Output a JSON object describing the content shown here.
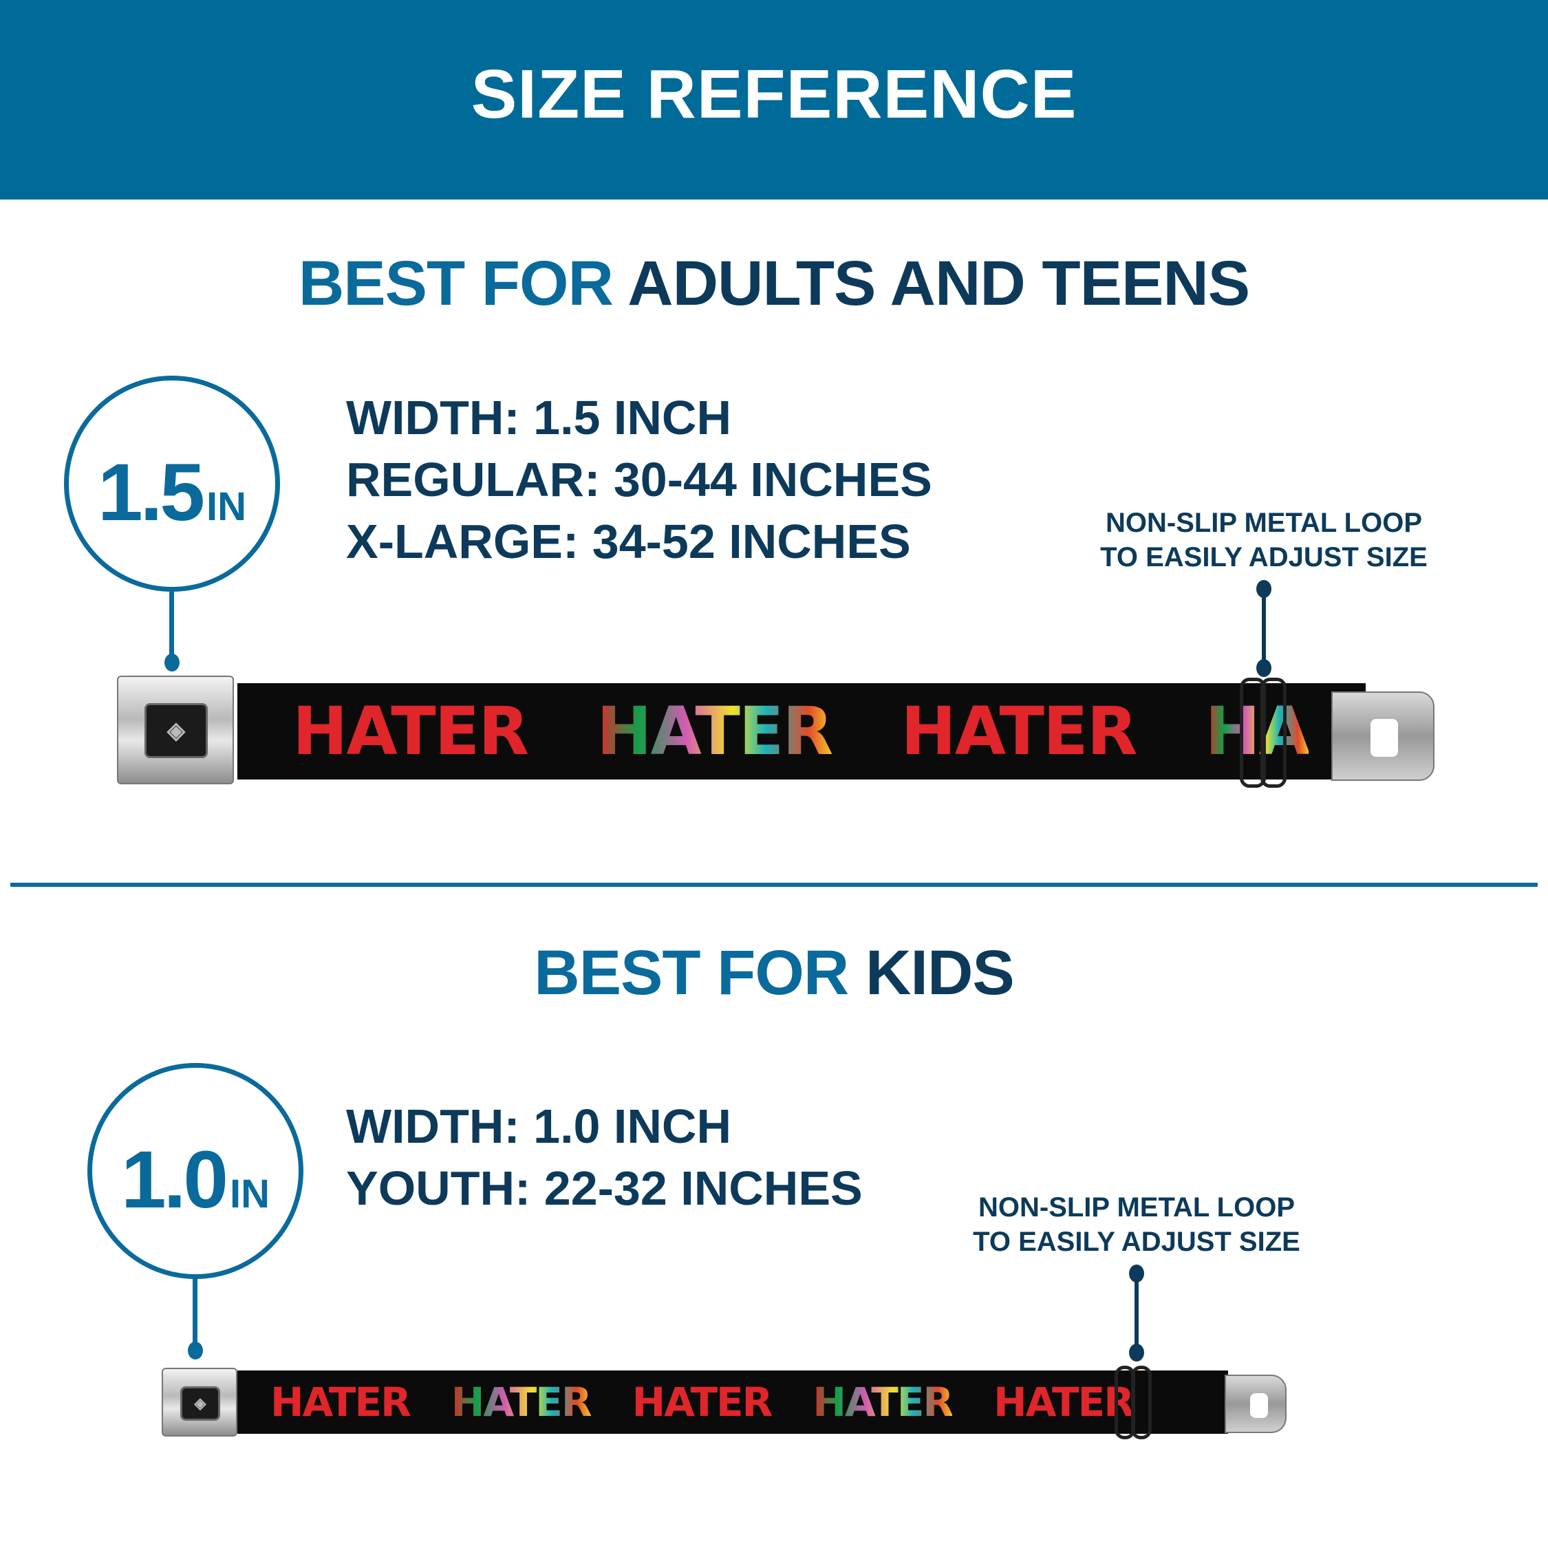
{
  "header": {
    "title": "SIZE REFERENCE"
  },
  "colors": {
    "header_bg": "#006a98",
    "accent": "#0a6a9c",
    "dark": "#0d3a5a",
    "strap": "#0b0b0b",
    "print_red": "#e0262b"
  },
  "adults": {
    "title_accent": "BEST FOR",
    "title_rest": "ADULTS AND TEENS",
    "badge_value": "1.5",
    "badge_unit": "IN",
    "specs": [
      "WIDTH: 1.5 INCH",
      "REGULAR: 30-44 INCHES",
      "X-LARGE: 34-52 INCHES"
    ],
    "callout": [
      "NON-SLIP METAL LOOP",
      "TO EASILY ADJUST SIZE"
    ],
    "belt_words": [
      "HATER",
      "HATER",
      "HATER",
      "HA"
    ],
    "buckle_logo": "BD"
  },
  "kids": {
    "title_accent": "BEST FOR",
    "title_rest": "KIDS",
    "badge_value": "1.0",
    "badge_unit": "IN",
    "specs": [
      "WIDTH: 1.0 INCH",
      "YOUTH: 22-32 INCHES"
    ],
    "callout": [
      "NON-SLIP METAL LOOP",
      "TO EASILY ADJUST SIZE"
    ],
    "belt_words": [
      "HATER",
      "HATER",
      "HATER",
      "HATER",
      "HATER"
    ],
    "buckle_logo": "BD"
  }
}
